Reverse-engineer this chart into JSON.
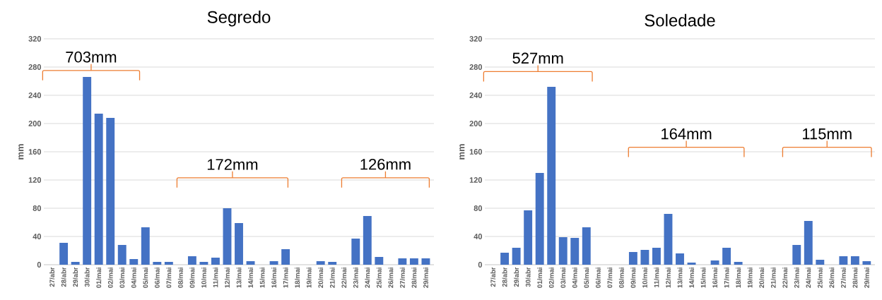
{
  "chart_data": [
    {
      "type": "bar",
      "title": "Segredo",
      "ylabel": "mm",
      "categories": [
        "27/abr",
        "28/abr",
        "29/abr",
        "30/abr",
        "01/mai",
        "02/mai",
        "03/mai",
        "04/mai",
        "05/mai",
        "06/mai",
        "07/mai",
        "08/mai",
        "09/mai",
        "10/mai",
        "11/mai",
        "12/mai",
        "13/mai",
        "14/mai",
        "15/mai",
        "16/mai",
        "17/mai",
        "18/mai",
        "19/mai",
        "20/mai",
        "21/mai",
        "22/mai",
        "23/mai",
        "24/mai",
        "25/mai",
        "26/mai",
        "27/mai",
        "28/mai",
        "29/mai"
      ],
      "values": [
        0,
        31,
        4,
        266,
        214,
        208,
        28,
        8,
        53,
        4,
        4,
        0,
        12,
        4,
        10,
        80,
        59,
        5,
        0,
        5,
        22,
        0,
        0,
        5,
        4,
        0,
        37,
        69,
        11,
        0,
        9,
        9,
        9
      ],
      "color": "#4472c4",
      "ylim": [
        0,
        320
      ],
      "yticks": [
        0,
        40,
        80,
        120,
        160,
        200,
        240,
        280,
        320
      ],
      "grid": "y",
      "annotations": [
        "703mm",
        "172mm",
        "126mm"
      ]
    },
    {
      "type": "bar",
      "title": "Soledade",
      "ylabel": "mm",
      "categories": [
        "27/abr",
        "28/abr",
        "29/abr",
        "30/abr",
        "01/mai",
        "02/mai",
        "03/mai",
        "04/mai",
        "05/mai",
        "06/mai",
        "07/mai",
        "08/mai",
        "09/mai",
        "10/mai",
        "11/mai",
        "12/mai",
        "13/mai",
        "14/mai",
        "15/mai",
        "16/mai",
        "17/mai",
        "18/mai",
        "19/mai",
        "20/mai",
        "21/mai",
        "22/mai",
        "23/mai",
        "24/mai",
        "25/mai",
        "26/mai",
        "27/mai",
        "28/mai",
        "29/mai"
      ],
      "values": [
        0,
        17,
        24,
        77,
        130,
        252,
        39,
        38,
        53,
        0,
        0,
        0,
        18,
        21,
        24,
        72,
        16,
        3,
        0,
        6,
        24,
        4,
        0,
        0,
        0,
        0,
        28,
        62,
        7,
        0,
        12,
        12,
        5
      ],
      "color": "#4472c4",
      "ylim": [
        0,
        320
      ],
      "yticks": [
        0,
        40,
        80,
        120,
        160,
        200,
        240,
        280,
        320
      ],
      "grid": "y",
      "annotations": [
        "527mm",
        "164mm",
        "115mm"
      ]
    }
  ]
}
